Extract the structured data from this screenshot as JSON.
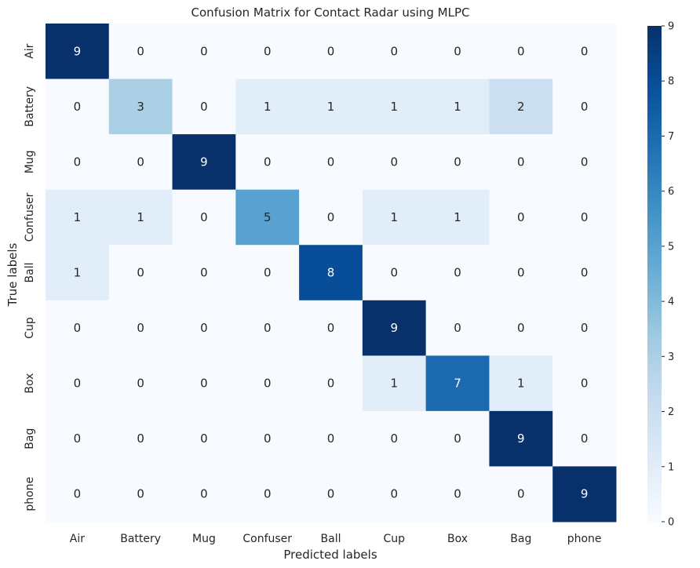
{
  "chart_data": {
    "type": "heatmap",
    "title": "Confusion Matrix for Contact Radar using MLPC",
    "xlabel": "Predicted labels",
    "ylabel": "True labels",
    "x_categories": [
      "Air",
      "Battery",
      "Mug",
      "Confuser",
      "Ball",
      "Cup",
      "Box",
      "Bag",
      "phone"
    ],
    "y_categories": [
      "Air",
      "Battery",
      "Mug",
      "Confuser",
      "Ball",
      "Cup",
      "Box",
      "Bag",
      "phone"
    ],
    "values": [
      [
        9,
        0,
        0,
        0,
        0,
        0,
        0,
        0,
        0
      ],
      [
        0,
        3,
        0,
        1,
        1,
        1,
        1,
        2,
        0
      ],
      [
        0,
        0,
        9,
        0,
        0,
        0,
        0,
        0,
        0
      ],
      [
        1,
        1,
        0,
        5,
        0,
        1,
        1,
        0,
        0
      ],
      [
        1,
        0,
        0,
        0,
        8,
        0,
        0,
        0,
        0
      ],
      [
        0,
        0,
        0,
        0,
        0,
        9,
        0,
        0,
        0
      ],
      [
        0,
        0,
        0,
        0,
        0,
        1,
        7,
        1,
        0
      ],
      [
        0,
        0,
        0,
        0,
        0,
        0,
        0,
        9,
        0
      ],
      [
        0,
        0,
        0,
        0,
        0,
        0,
        0,
        0,
        9
      ]
    ],
    "colormap": "Blues",
    "vmin": 0,
    "vmax": 9,
    "colorbar_ticks": [
      "0",
      "1",
      "2",
      "3",
      "4",
      "5",
      "6",
      "7",
      "8",
      "9"
    ],
    "colorbar_placement": "right",
    "grid": false
  }
}
